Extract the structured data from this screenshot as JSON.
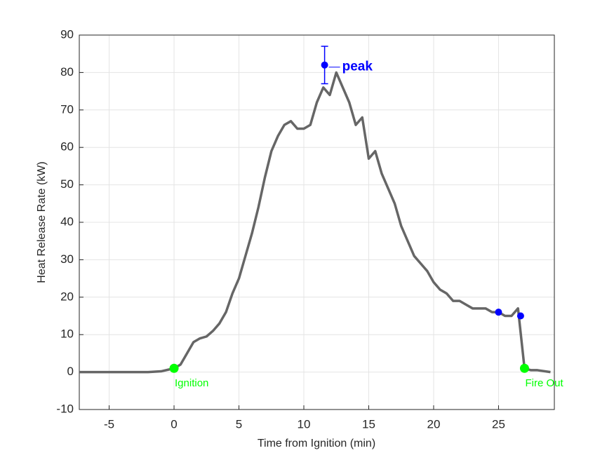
{
  "chart_data": {
    "type": "line",
    "xlabel": "Time from Ignition (min)",
    "ylabel": "Heat Release Rate (kW)",
    "x": [
      -7.3,
      -6,
      -5,
      -4,
      -3,
      -2,
      -1,
      0,
      0.5,
      1,
      1.5,
      2,
      2.5,
      3,
      3.5,
      4,
      4.5,
      5,
      5.5,
      6,
      6.5,
      7,
      7.5,
      8,
      8.5,
      9,
      9.5,
      10,
      10.5,
      11,
      11.5,
      12,
      12.5,
      13,
      13.5,
      14,
      14.5,
      15,
      15.5,
      16,
      16.5,
      17,
      17.5,
      18,
      18.5,
      19,
      19.5,
      20,
      20.5,
      21,
      21.5,
      22,
      22.5,
      23,
      23.5,
      24,
      24.5,
      25,
      25.5,
      26,
      26.5,
      27,
      27.5,
      28,
      29
    ],
    "values": [
      0,
      0,
      0,
      0,
      0,
      0,
      0.2,
      1,
      2,
      5,
      8,
      9,
      9.5,
      11,
      13,
      16,
      21,
      25,
      31,
      37,
      44,
      52,
      59,
      63,
      66,
      67,
      65,
      65,
      66,
      72,
      76,
      74,
      80,
      76,
      72,
      66,
      68,
      57,
      59,
      53,
      49,
      45,
      39,
      35,
      31,
      29,
      27,
      24,
      22,
      21,
      19,
      19,
      18,
      17,
      17,
      17,
      16,
      16,
      15,
      15,
      17,
      1,
      0.5,
      0.5,
      0
    ],
    "color": "#666666",
    "markers": [
      {
        "x": 0,
        "y": 1,
        "color": "#00ff00",
        "label": "Ignition"
      },
      {
        "x": 27,
        "y": 1,
        "color": "#00ff00",
        "label": "Fire Out"
      },
      {
        "x": 25,
        "y": 16,
        "color": "#0000ff"
      },
      {
        "x": 26.7,
        "y": 15,
        "color": "#0000ff"
      }
    ],
    "peak": {
      "x": 11.6,
      "y": 82,
      "error": 5,
      "color": "#0000ff",
      "label": "peak"
    },
    "xlim": [
      -7.3,
      29.3
    ],
    "ylim": [
      -10,
      90
    ],
    "xticks": [
      -5,
      0,
      5,
      10,
      15,
      20,
      25
    ],
    "yticks": [
      -10,
      0,
      10,
      20,
      30,
      40,
      50,
      60,
      70,
      80,
      90
    ],
    "grid": true
  }
}
